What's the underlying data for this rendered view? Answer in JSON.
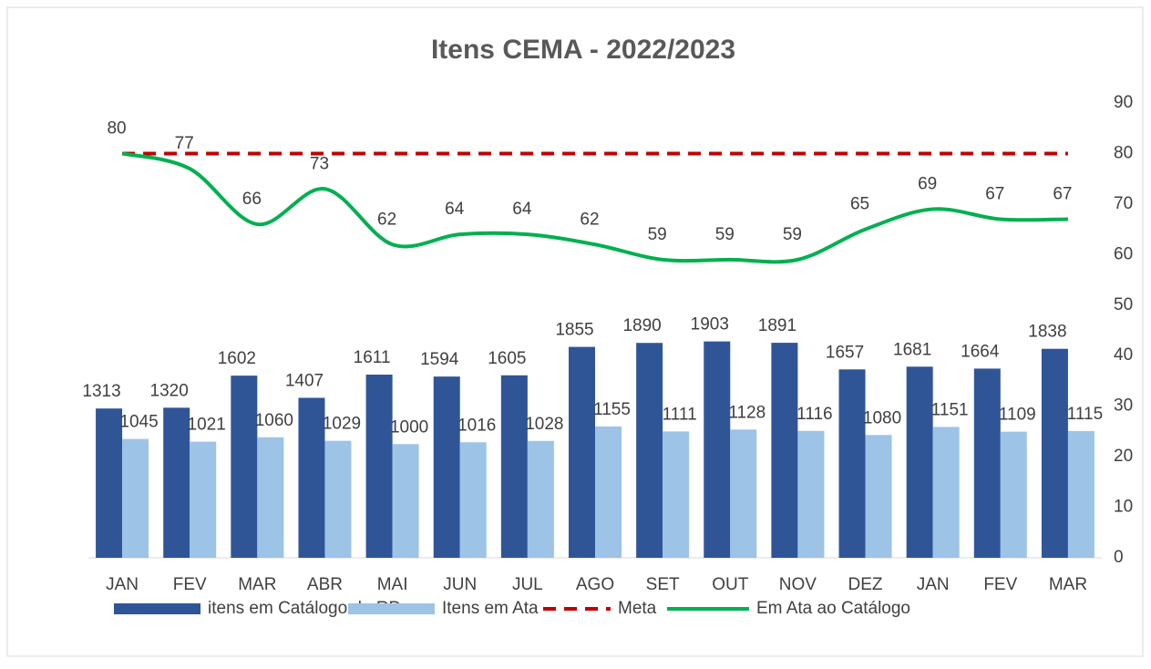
{
  "chart_data": {
    "type": "bar_line",
    "title": "Itens CEMA - 2022/2023",
    "categories": [
      "JAN",
      "FEV",
      "MAR",
      "ABR",
      "MAI",
      "JUN",
      "JUL",
      "AGO",
      "SET",
      "OUT",
      "NOV",
      "DEZ",
      "JAN",
      "FEV",
      "MAR"
    ],
    "series": [
      {
        "name": "itens em Catálogo de RP",
        "type": "bar",
        "color": "#2f5597",
        "values": [
          1313,
          1320,
          1602,
          1407,
          1611,
          1594,
          1605,
          1855,
          1890,
          1903,
          1891,
          1657,
          1681,
          1664,
          1838
        ]
      },
      {
        "name": "Itens em Ata",
        "type": "bar",
        "color": "#9dc3e6",
        "values": [
          1045,
          1021,
          1060,
          1029,
          1000,
          1016,
          1028,
          1155,
          1111,
          1128,
          1116,
          1080,
          1151,
          1109,
          1115
        ]
      },
      {
        "name": "Meta",
        "type": "line",
        "axis": "y2",
        "dashed": true,
        "color": "#c00000",
        "values": [
          80,
          80,
          80,
          80,
          80,
          80,
          80,
          80,
          80,
          80,
          80,
          80,
          80,
          80,
          80
        ]
      },
      {
        "name": "Em Ata ao Catálogo",
        "type": "line",
        "axis": "y2",
        "smooth": true,
        "data_labels": true,
        "color": "#00b050",
        "values": [
          80,
          77,
          66,
          73,
          62,
          64,
          64,
          62,
          59,
          59,
          59,
          65,
          69,
          67,
          67
        ]
      }
    ],
    "ylim": [
      0,
      4000
    ],
    "y2lim": [
      0,
      90
    ],
    "y2ticks": [
      0,
      10,
      20,
      30,
      40,
      50,
      60,
      70,
      80,
      90
    ],
    "legend": "bottom"
  }
}
